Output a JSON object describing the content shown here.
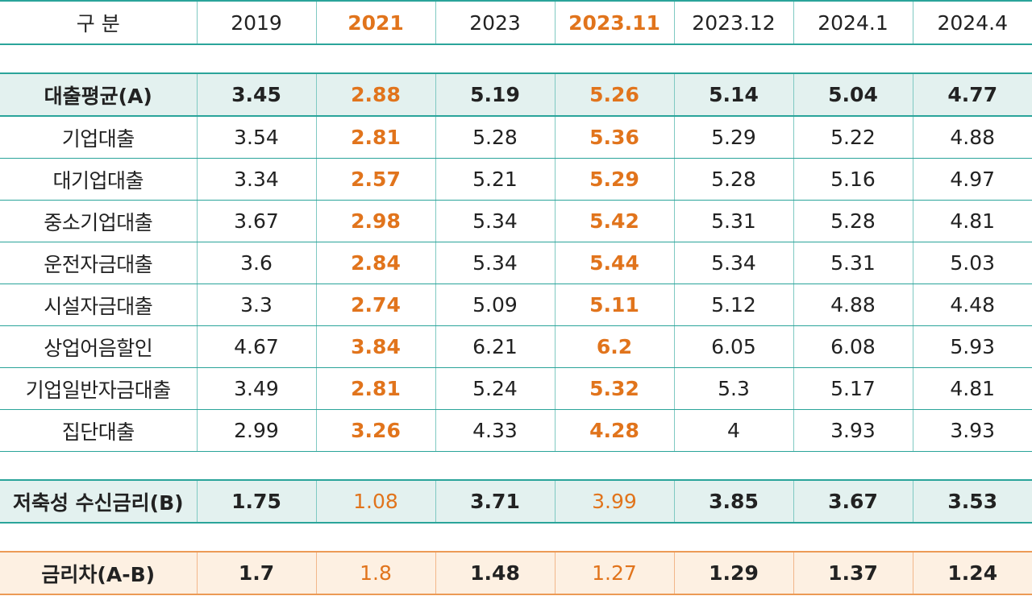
{
  "header": [
    "구 분",
    "2019",
    "2021",
    "2023",
    "2023.11",
    "2023.12",
    "2024.1",
    "2024.4"
  ],
  "highlight_columns": [
    2,
    4
  ],
  "colors": {
    "teal": "#2aa49a",
    "orange": "#e1741c",
    "teal_fill": "#e3f1ef",
    "orange_fill": "#fdf0e2"
  },
  "loan_avg": {
    "label": "대출평균(A)",
    "values": [
      "3.45",
      "2.88",
      "5.19",
      "5.26",
      "5.14",
      "5.04",
      "4.77"
    ]
  },
  "loan_rows": [
    {
      "label": "기업대출",
      "values": [
        "3.54",
        "2.81",
        "5.28",
        "5.36",
        "5.29",
        "5.22",
        "4.88"
      ]
    },
    {
      "label": "대기업대출",
      "values": [
        "3.34",
        "2.57",
        "5.21",
        "5.29",
        "5.28",
        "5.16",
        "4.97"
      ]
    },
    {
      "label": "중소기업대출",
      "values": [
        "3.67",
        "2.98",
        "5.34",
        "5.42",
        "5.31",
        "5.28",
        "4.81"
      ]
    },
    {
      "label": "운전자금대출",
      "values": [
        "3.6",
        "2.84",
        "5.34",
        "5.44",
        "5.34",
        "5.31",
        "5.03"
      ]
    },
    {
      "label": "시설자금대출",
      "values": [
        "3.3",
        "2.74",
        "5.09",
        "5.11",
        "5.12",
        "4.88",
        "4.48"
      ]
    },
    {
      "label": "상업어음할인",
      "values": [
        "4.67",
        "3.84",
        "6.21",
        "6.2",
        "6.05",
        "6.08",
        "5.93"
      ]
    },
    {
      "label": "기업일반자금대출",
      "values": [
        "3.49",
        "2.81",
        "5.24",
        "5.32",
        "5.3",
        "5.17",
        "4.81"
      ]
    },
    {
      "label": "집단대출",
      "values": [
        "2.99",
        "3.26",
        "4.33",
        "4.28",
        "4",
        "3.93",
        "3.93"
      ]
    }
  ],
  "deposit": {
    "label": "저축성 수신금리(B)",
    "values": [
      "1.75",
      "1.08",
      "3.71",
      "3.99",
      "3.85",
      "3.67",
      "3.53"
    ]
  },
  "spread": {
    "label": "금리차(A-B)",
    "values": [
      "1.7",
      "1.8",
      "1.48",
      "1.27",
      "1.29",
      "1.37",
      "1.24"
    ]
  }
}
